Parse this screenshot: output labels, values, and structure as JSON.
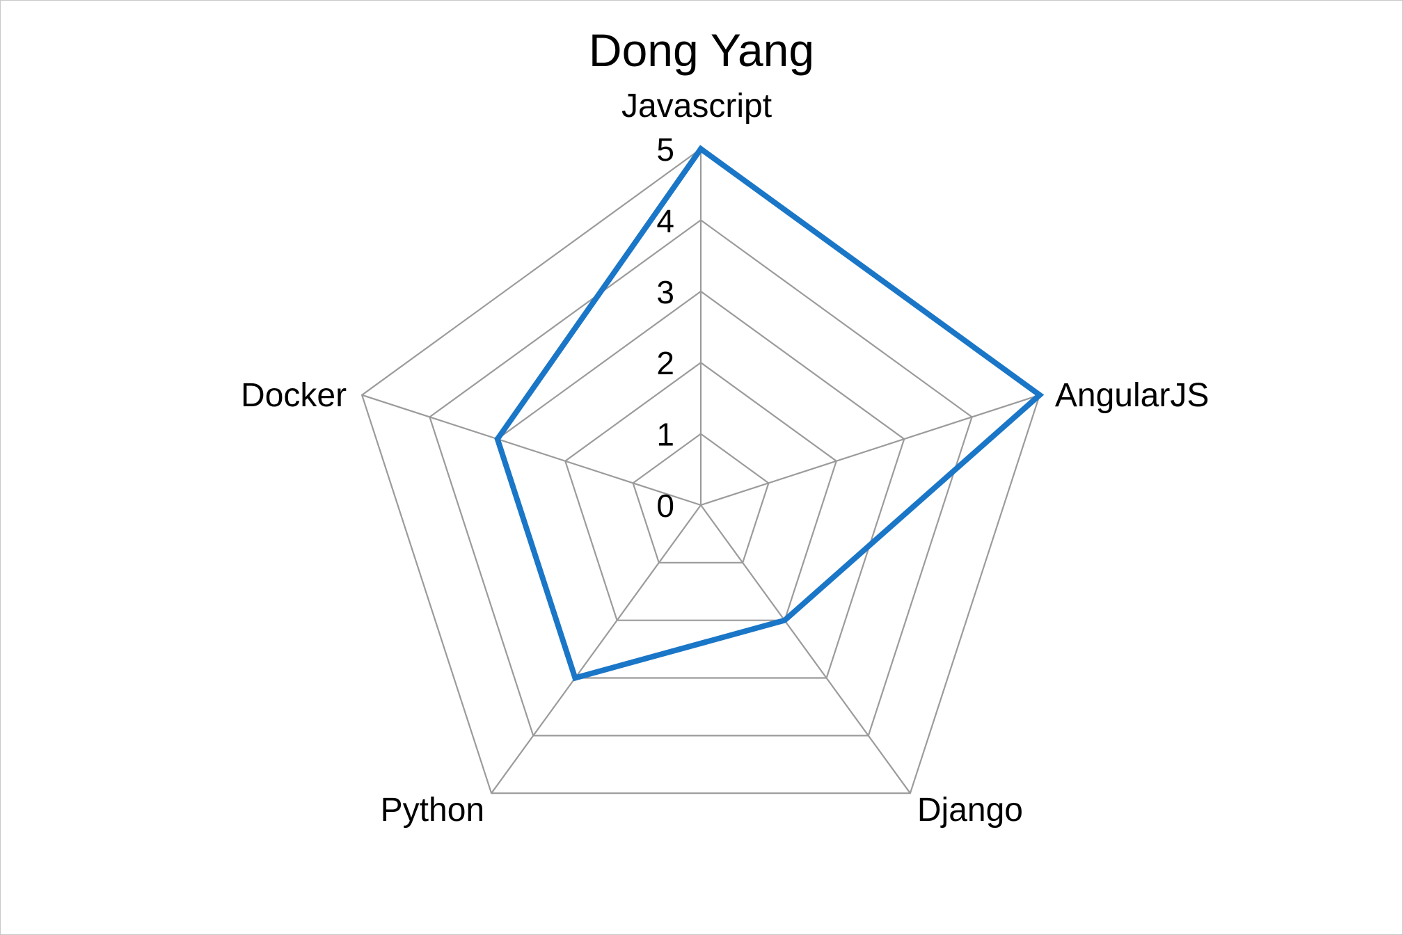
{
  "chart_data": {
    "type": "radar",
    "title": "Dong Yang",
    "axes": [
      "Javascript",
      "AngularJS",
      "Django",
      "Python",
      "Docker"
    ],
    "scale": {
      "min": 0,
      "max": 5,
      "step": 1
    },
    "ticks": [
      "0",
      "1",
      "2",
      "3",
      "4",
      "5"
    ],
    "series": [
      {
        "values": [
          5,
          5,
          2,
          3,
          3
        ],
        "color": "#1a76c7"
      }
    ],
    "grid": true,
    "grid_color": "#9b9b9b"
  }
}
